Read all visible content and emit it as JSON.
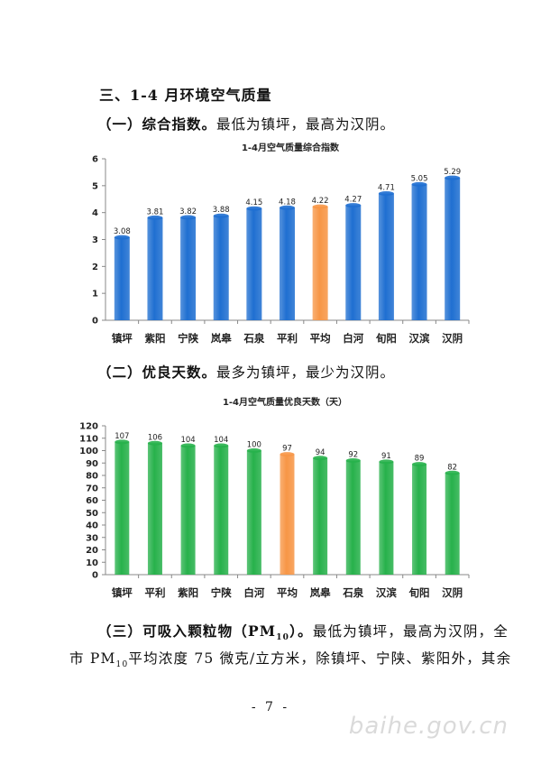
{
  "document": {
    "section_heading": "三、1-4 月环境空气质量",
    "sub1": {
      "label": "（一）综合指数。",
      "text": "最低为镇坪，最高为汉阴。"
    },
    "sub2": {
      "label": "（二）优良天数。",
      "text": "最多为镇坪，最少为汉阴。"
    },
    "sub3": {
      "line1_label": "（三）可吸入颗粒物（PM",
      "line1_sub": "10",
      "line1_label_end": "）。",
      "line1_text": "最低为镇坪，最高为汉阴，全",
      "line2_a": "市 PM",
      "line2_sub": "10",
      "line2_b": "平均浓度 75 微克/立方米，除镇坪、宁陕、紫阳外，其余"
    },
    "page_number": "- 7 -",
    "watermark": "baihe.gov.cn"
  },
  "colors": {
    "regular_bar": "#1f6fd1",
    "average_bar_index": "#f79646",
    "good_bar": "#27b14b",
    "average_bar_days": "#f79646"
  },
  "chart_data": [
    {
      "type": "bar",
      "title": "1-4月空气质量综合指数",
      "categories": [
        "镇坪",
        "紫阳",
        "宁陕",
        "岚皋",
        "石泉",
        "平利",
        "平均",
        "白河",
        "旬阳",
        "汉滨",
        "汉阴"
      ],
      "values": [
        3.08,
        3.81,
        3.82,
        3.88,
        4.15,
        4.18,
        4.22,
        4.27,
        4.71,
        5.05,
        5.29
      ],
      "value_labels": [
        "3.08",
        "3.81",
        "3.82",
        "3.88",
        "4.15",
        "4.18",
        "4.22",
        "4.27",
        "4.71",
        "5.05",
        "5.29"
      ],
      "highlight_category": "平均",
      "ylim": [
        0,
        6
      ],
      "yticks": [
        "0",
        "1",
        "2",
        "3",
        "4",
        "5",
        "6"
      ],
      "grid": false,
      "legend": "none"
    },
    {
      "type": "bar",
      "title": "1-4月空气质量优良天数（天）",
      "categories": [
        "镇坪",
        "平利",
        "紫阳",
        "宁陕",
        "白河",
        "平均",
        "岚皋",
        "石泉",
        "汉滨",
        "旬阳",
        "汉阴"
      ],
      "values": [
        107,
        106,
        104,
        104,
        100,
        97,
        94,
        92,
        91,
        89,
        82
      ],
      "value_labels": [
        "107",
        "106",
        "104",
        "104",
        "100",
        "97",
        "94",
        "92",
        "91",
        "89",
        "82"
      ],
      "highlight_category": "平均",
      "ylim": [
        0,
        120
      ],
      "yticks": [
        "0",
        "10",
        "20",
        "30",
        "40",
        "50",
        "60",
        "70",
        "80",
        "90",
        "100",
        "110",
        "120"
      ],
      "grid": false,
      "legend": "none"
    }
  ]
}
